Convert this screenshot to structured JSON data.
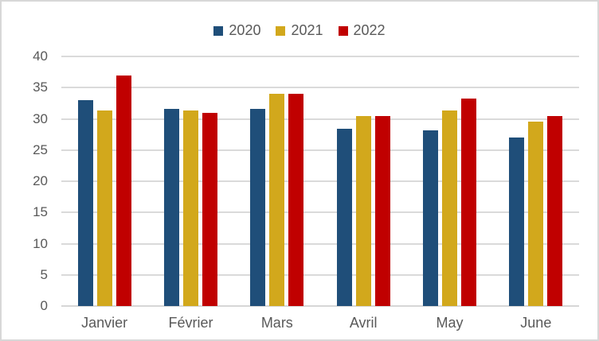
{
  "chart": {
    "background_color": "#FFFFFF",
    "border_color": "#D7D7D7",
    "text_color": "#595959",
    "gridline_color": "#DADADA",
    "axis_line_color": "#D6D6D6"
  },
  "chart_data": {
    "type": "bar",
    "title": "",
    "xlabel": "",
    "ylabel": "",
    "categories": [
      "Janvier",
      "Février",
      "Mars",
      "Avril",
      "May",
      "June"
    ],
    "series": [
      {
        "name": "2020",
        "color": "#1F4E79",
        "values": [
          33.0,
          31.6,
          31.6,
          28.4,
          28.2,
          27.0
        ]
      },
      {
        "name": "2021",
        "color": "#D2A81C",
        "values": [
          31.3,
          31.3,
          34.0,
          30.5,
          31.3,
          29.5
        ]
      },
      {
        "name": "2022",
        "color": "#C00000",
        "values": [
          37.0,
          31.0,
          34.0,
          30.4,
          33.3,
          30.5
        ]
      }
    ],
    "ylim": [
      0,
      40
    ],
    "yticks": [
      0,
      5,
      10,
      15,
      20,
      25,
      30,
      35,
      40
    ],
    "grid": true,
    "legend_position": "top"
  }
}
